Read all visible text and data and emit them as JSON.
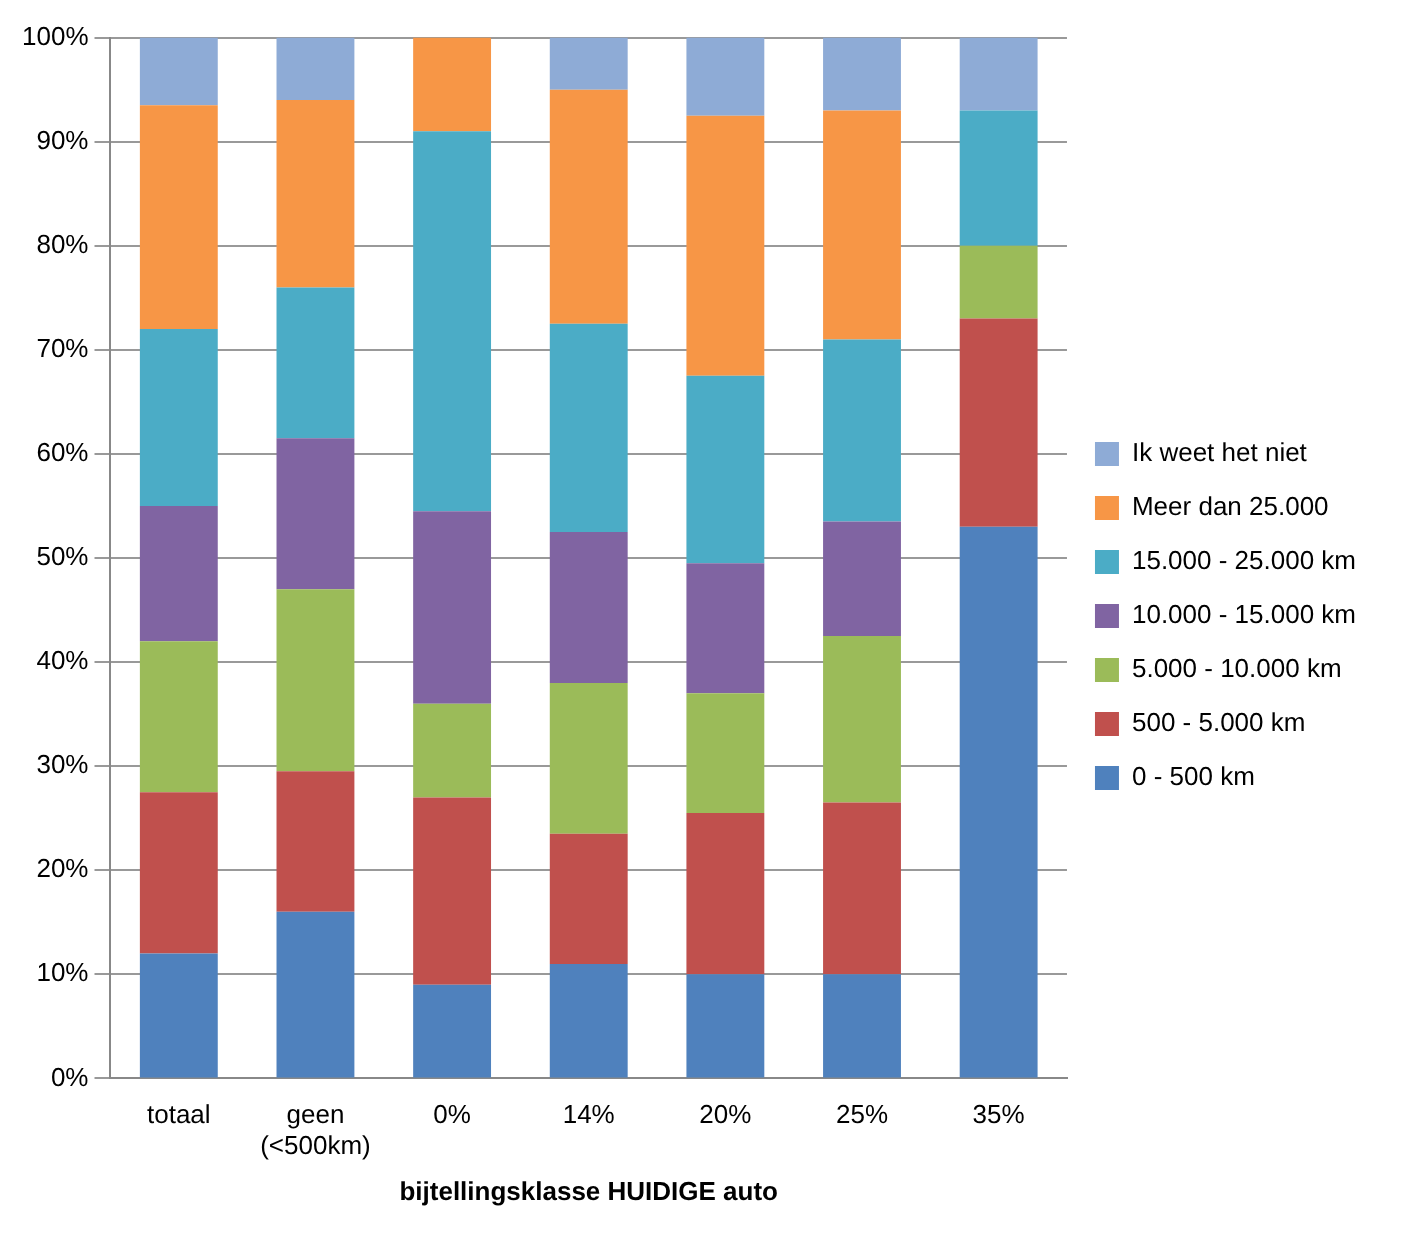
{
  "chart_data": {
    "type": "bar",
    "stacked": true,
    "xlabel": "bijtellingsklasse HUIDIGE auto",
    "categories": [
      "totaal",
      "geen\n(<500km)",
      "0%",
      "14%",
      "20%",
      "25%",
      "35%"
    ],
    "series": [
      {
        "name": "0 - 500 km",
        "color": "#4f81bd",
        "values": [
          12,
          16,
          9,
          11,
          10,
          10,
          53
        ]
      },
      {
        "name": "500 - 5.000 km",
        "color": "#c0504d",
        "values": [
          15.5,
          13.5,
          18,
          12.5,
          15.5,
          16.5,
          20
        ]
      },
      {
        "name": "5.000 - 10.000 km",
        "color": "#9bbb59",
        "values": [
          14.5,
          17.5,
          9,
          14.5,
          11.5,
          16,
          7
        ]
      },
      {
        "name": "10.000 - 15.000 km",
        "color": "#8064a2",
        "values": [
          13,
          14.5,
          18.5,
          14.5,
          12.5,
          11,
          0
        ]
      },
      {
        "name": "15.000 - 25.000 km",
        "color": "#4bacc6",
        "values": [
          17,
          14.5,
          36.5,
          20,
          18,
          17.5,
          13
        ]
      },
      {
        "name": "Meer dan 25.000",
        "color": "#f79646",
        "values": [
          21.5,
          18,
          9,
          22.5,
          25,
          22,
          0
        ]
      },
      {
        "name": "Ik weet het niet",
        "color": "#8eabd6",
        "values": [
          6.5,
          6,
          0,
          5,
          7.5,
          7,
          7
        ]
      }
    ],
    "ylim": [
      0,
      100
    ],
    "yticks": [
      {
        "value": 0,
        "label": "0%"
      },
      {
        "value": 10,
        "label": "10%"
      },
      {
        "value": 20,
        "label": "20%"
      },
      {
        "value": 30,
        "label": "30%"
      },
      {
        "value": 40,
        "label": "40%"
      },
      {
        "value": 50,
        "label": "50%"
      },
      {
        "value": 60,
        "label": "60%"
      },
      {
        "value": 70,
        "label": "70%"
      },
      {
        "value": 80,
        "label": "80%"
      },
      {
        "value": 90,
        "label": "90%"
      },
      {
        "value": 100,
        "label": "100%"
      }
    ],
    "grid": "y",
    "legend": "right"
  }
}
